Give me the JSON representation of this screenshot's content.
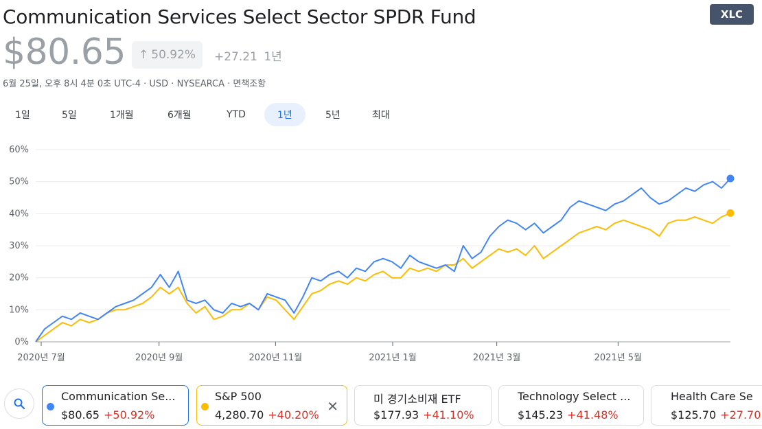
{
  "header": {
    "title": "Communication Services Select Sector SPDR Fund",
    "ticker": "XLC",
    "price": "$80.65",
    "change_pct": "50.92%",
    "change_abs": "+27.21",
    "period": "1년",
    "meta": "6월 25일, 오후 8시 4분 0초 UTC-4 · USD · NYSEARCA · 면책조항"
  },
  "ranges": [
    {
      "label": "1일",
      "active": false
    },
    {
      "label": "5일",
      "active": false
    },
    {
      "label": "1개월",
      "active": false
    },
    {
      "label": "6개월",
      "active": false
    },
    {
      "label": "YTD",
      "active": false
    },
    {
      "label": "1년",
      "active": true
    },
    {
      "label": "5년",
      "active": false
    },
    {
      "label": "최대",
      "active": false
    }
  ],
  "colors": {
    "xlc": "#4285f4",
    "sp500": "#fbbc04",
    "negative": "#d93025",
    "accent": "#1a73e8"
  },
  "chart_data": {
    "type": "line",
    "ylim": [
      0,
      60
    ],
    "yticks": [
      "0%",
      "10%",
      "20%",
      "30%",
      "40%",
      "50%",
      "60%"
    ],
    "xticks": [
      "2020년 7월",
      "2020년 9월",
      "2020년 11월",
      "2021년 1월",
      "2021년 3월",
      "2021년 5월"
    ],
    "grid": true,
    "series": [
      {
        "name": "Communication Services Select Sector SPDR Fund",
        "color": "#4285f4",
        "values": [
          0,
          4,
          6,
          8,
          7,
          9,
          8,
          7,
          9,
          11,
          12,
          13,
          15,
          17,
          21,
          17,
          22,
          13,
          12,
          13,
          10,
          9,
          12,
          11,
          12,
          10,
          15,
          14,
          13,
          9,
          14,
          20,
          19,
          21,
          22,
          20,
          23,
          22,
          25,
          26,
          25,
          23,
          27,
          25,
          24,
          23,
          24,
          22,
          30,
          26,
          28,
          33,
          36,
          38,
          37,
          35,
          37,
          34,
          36,
          38,
          42,
          44,
          43,
          42,
          41,
          43,
          44,
          46,
          48,
          45,
          43,
          44,
          46,
          48,
          47,
          49,
          50,
          48,
          51
        ]
      },
      {
        "name": "S&P 500",
        "color": "#fbbc04",
        "values": [
          0,
          2,
          4,
          6,
          5,
          7,
          6,
          7,
          9,
          10,
          10,
          11,
          12,
          14,
          17,
          15,
          17,
          12,
          9,
          11,
          7,
          8,
          10,
          10,
          12,
          10,
          14,
          13,
          10,
          7,
          11,
          15,
          16,
          18,
          19,
          18,
          20,
          19,
          21,
          22,
          20,
          20,
          23,
          22,
          23,
          22,
          24,
          24,
          26,
          23,
          25,
          27,
          29,
          28,
          29,
          27,
          30,
          26,
          28,
          30,
          32,
          34,
          35,
          36,
          35,
          37,
          38,
          37,
          36,
          35,
          33,
          37,
          38,
          38,
          39,
          38,
          37,
          39,
          40.2
        ]
      }
    ]
  },
  "comparisons": {
    "cards": [
      {
        "name": "Communication Se...",
        "price": "$80.65",
        "pct": "+50.92%"
      },
      {
        "name": "S&P 500",
        "price": "4,280.70",
        "pct": "+40.20%"
      },
      {
        "name": "미 경기소비재 ETF",
        "price": "$177.93",
        "pct": "+41.10%"
      },
      {
        "name": "Technology Select ...",
        "price": "$145.23",
        "pct": "+41.48%"
      },
      {
        "name": "Health Care Se",
        "price": "$125.70",
        "pct": "+27.70"
      }
    ]
  }
}
